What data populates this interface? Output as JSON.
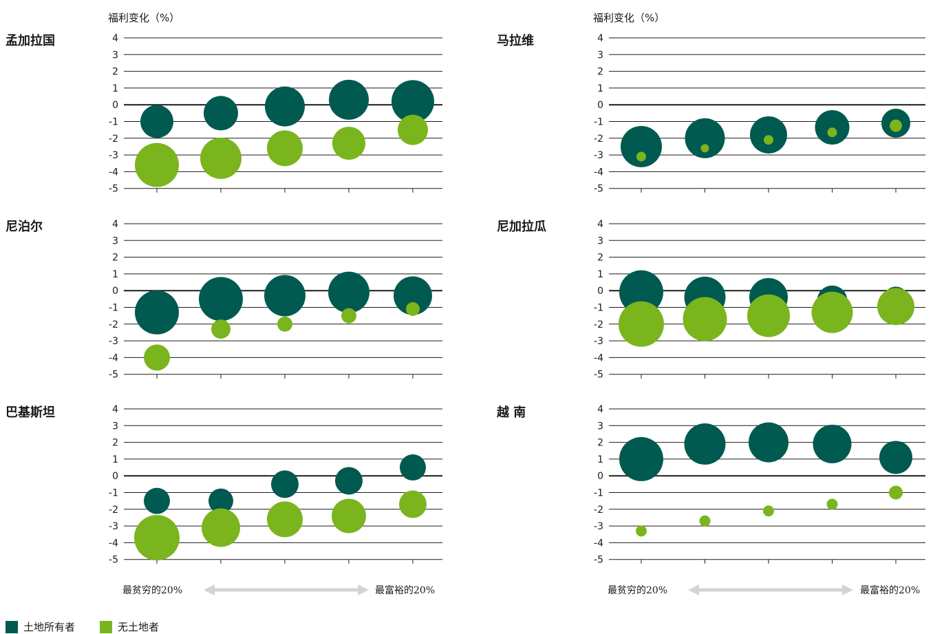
{
  "chart_data": [
    {
      "type": "scatter",
      "title": "孟加拉国",
      "ylabel": "福利变化（%）",
      "ylim": [
        -5,
        4
      ],
      "yticks": [
        "4",
        "3",
        "2",
        "1",
        "0",
        "-1",
        "-2",
        "-3",
        "-4",
        "-5"
      ],
      "x": [
        1,
        2,
        3,
        4,
        5
      ],
      "series": [
        {
          "name": "土地所有者",
          "values": [
            -1.0,
            -0.5,
            -0.1,
            0.3,
            0.2
          ],
          "sizes": [
            24,
            25,
            29,
            29,
            31
          ]
        },
        {
          "name": "无土地者",
          "values": [
            -3.6,
            -3.2,
            -2.6,
            -2.3,
            -1.5
          ],
          "sizes": [
            32,
            30,
            26,
            24,
            22
          ]
        }
      ]
    },
    {
      "type": "scatter",
      "title": "马拉维",
      "ylabel": "福利变化（%）",
      "ylim": [
        -5,
        4
      ],
      "yticks": [
        "4",
        "3",
        "2",
        "1",
        "0",
        "-1",
        "-2",
        "-3",
        "-4",
        "-5"
      ],
      "x": [
        1,
        2,
        3,
        4,
        5
      ],
      "series": [
        {
          "name": "土地所有者",
          "values": [
            -2.5,
            -2.0,
            -1.8,
            -1.35,
            -1.1
          ],
          "sizes": [
            30,
            29,
            27,
            25,
            21
          ]
        },
        {
          "name": "无土地者",
          "values": [
            -3.1,
            -2.6,
            -2.1,
            -1.65,
            -1.25
          ],
          "sizes": [
            7,
            6,
            7,
            7,
            9
          ]
        }
      ]
    },
    {
      "type": "scatter",
      "title": "尼泊尔",
      "ylim": [
        -5,
        4
      ],
      "yticks": [
        "4",
        "3",
        "2",
        "1",
        "0",
        "-1",
        "-2",
        "-3",
        "-4",
        "-5"
      ],
      "x": [
        1,
        2,
        3,
        4,
        5
      ],
      "series": [
        {
          "name": "土地所有者",
          "values": [
            -1.3,
            -0.5,
            -0.3,
            -0.1,
            -0.3
          ],
          "sizes": [
            32,
            32,
            30,
            30,
            28
          ]
        },
        {
          "name": "无土地者",
          "values": [
            -4.0,
            -2.3,
            -2.0,
            -1.5,
            -1.1
          ],
          "sizes": [
            19,
            14,
            11,
            11,
            10
          ]
        }
      ]
    },
    {
      "type": "scatter",
      "title": "尼加拉瓜",
      "ylim": [
        -5,
        4
      ],
      "yticks": [
        "4",
        "3",
        "2",
        "1",
        "0",
        "-1",
        "-2",
        "-3",
        "-4",
        "-5"
      ],
      "x": [
        1,
        2,
        3,
        4,
        5
      ],
      "series": [
        {
          "name": "土地所有者",
          "values": [
            -0.1,
            -0.4,
            -0.4,
            -0.6,
            -0.5
          ],
          "sizes": [
            32,
            30,
            28,
            22,
            18
          ]
        },
        {
          "name": "无土地者",
          "values": [
            -2.0,
            -1.7,
            -1.5,
            -1.3,
            -0.95
          ],
          "sizes": [
            33,
            32,
            31,
            30,
            27
          ]
        }
      ]
    },
    {
      "type": "scatter",
      "title": "巴基斯坦",
      "ylim": [
        -5,
        4
      ],
      "yticks": [
        "4",
        "3",
        "2",
        "1",
        "0",
        "-1",
        "-2",
        "-3",
        "-4",
        "-5"
      ],
      "x": [
        1,
        2,
        3,
        4,
        5
      ],
      "series": [
        {
          "name": "土地所有者",
          "values": [
            -1.5,
            -1.5,
            -0.5,
            -0.3,
            0.5
          ],
          "sizes": [
            19,
            18,
            20,
            20,
            19
          ]
        },
        {
          "name": "无土地者",
          "values": [
            -3.7,
            -3.1,
            -2.6,
            -2.4,
            -1.7
          ],
          "sizes": [
            33,
            28,
            26,
            25,
            20
          ]
        }
      ]
    },
    {
      "type": "scatter",
      "title": "越 南",
      "ylim": [
        -5,
        4
      ],
      "yticks": [
        "4",
        "3",
        "2",
        "1",
        "0",
        "-1",
        "-2",
        "-3",
        "-4",
        "-5"
      ],
      "x": [
        1,
        2,
        3,
        4,
        5
      ],
      "series": [
        {
          "name": "土地所有者",
          "values": [
            1.0,
            1.9,
            2.0,
            1.9,
            1.1
          ],
          "sizes": [
            32,
            30,
            29,
            28,
            24
          ]
        },
        {
          "name": "无土地者",
          "values": [
            -3.3,
            -2.7,
            -2.1,
            -1.7,
            -1.0
          ],
          "sizes": [
            8,
            8,
            8,
            8,
            10
          ]
        }
      ]
    }
  ],
  "axis": {
    "left_label": "最贫穷的20%",
    "right_label": "最富裕的20%"
  },
  "legend": {
    "items": [
      {
        "label": "土地所有者",
        "color": "#005a4f"
      },
      {
        "label": "无土地者",
        "color": "#7ab51d"
      }
    ]
  },
  "colors": {
    "landowner": "#005a4f",
    "landless": "#7ab51d",
    "arrow": "#d4d4d4"
  }
}
